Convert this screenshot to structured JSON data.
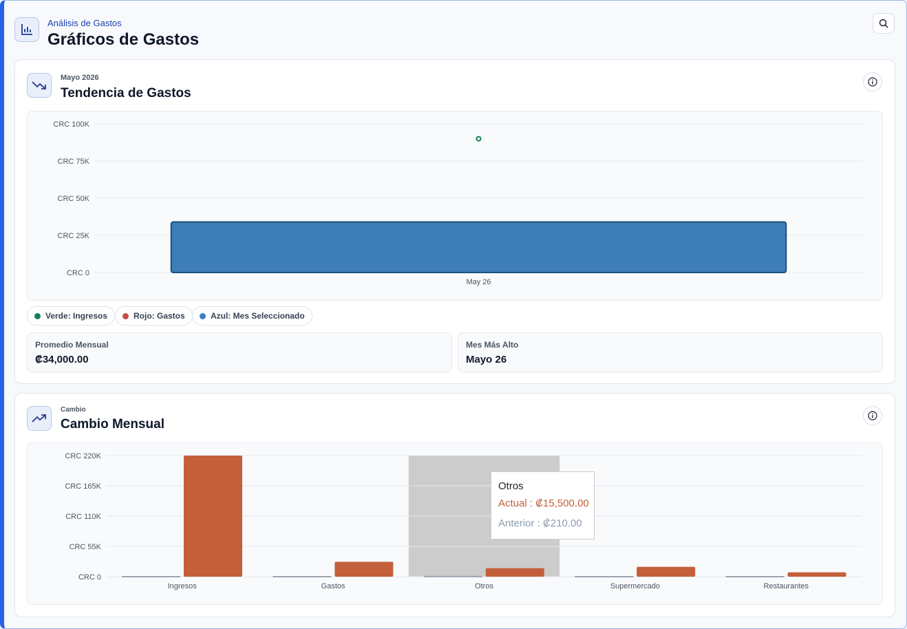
{
  "header": {
    "subtitle": "Análisis de Gastos",
    "title": "Gráficos de Gastos",
    "icon": "bar-chart-icon",
    "search_icon": "search-icon"
  },
  "trend_card": {
    "kicker": "Mayo 2026",
    "title": "Tendencia de Gastos",
    "icon": "trending-down-icon",
    "info_icon": "info-icon",
    "legend": [
      {
        "label": "Verde: Ingresos",
        "color": "#12805c"
      },
      {
        "label": "Rojo: Gastos",
        "color": "#c84b4b"
      },
      {
        "label": "Azul: Mes Seleccionado",
        "color": "#3b7fc4"
      }
    ],
    "stats": [
      {
        "label": "Promedio Mensual",
        "value": "₡34,000.00"
      },
      {
        "label": "Mes Más Alto",
        "value": "Mayo 26"
      }
    ]
  },
  "change_card": {
    "kicker": "Cambio",
    "title": "Cambio Mensual",
    "icon": "trending-up-icon",
    "info_icon": "info-icon",
    "tooltip": {
      "title": "Otros",
      "actual": "Actual : ₡15,500.00",
      "anterior": "Anterior : ₡210.00"
    }
  },
  "chart_data": [
    {
      "type": "bar",
      "categories": [
        "May 26"
      ],
      "series": [
        {
          "values": [
            34000
          ],
          "color": "#3d7eb8"
        }
      ],
      "points": [
        {
          "x": "May 26",
          "y": 90000,
          "color": "#12805c"
        }
      ],
      "yticks": [
        "CRC 0",
        "CRC 25K",
        "CRC 50K",
        "CRC 75K",
        "CRC 100K"
      ],
      "ylim": [
        0,
        100000
      ],
      "grid": true
    },
    {
      "type": "bar",
      "categories": [
        "Ingresos",
        "Gastos",
        "Otros",
        "Supermercado",
        "Restaurantes"
      ],
      "series": [
        {
          "name": "Anterior",
          "values": [
            0,
            0,
            210,
            0,
            0
          ],
          "color": "#9ca3af"
        },
        {
          "name": "Actual",
          "values": [
            220000,
            27000,
            15500,
            18000,
            8000
          ],
          "color": "#c45f3b"
        }
      ],
      "yticks": [
        "CRC 0",
        "CRC 55K",
        "CRC 110K",
        "CRC 165K",
        "CRC 220K"
      ],
      "ylim": [
        0,
        220000
      ],
      "grid": true,
      "highlighted_category": "Otros"
    }
  ]
}
